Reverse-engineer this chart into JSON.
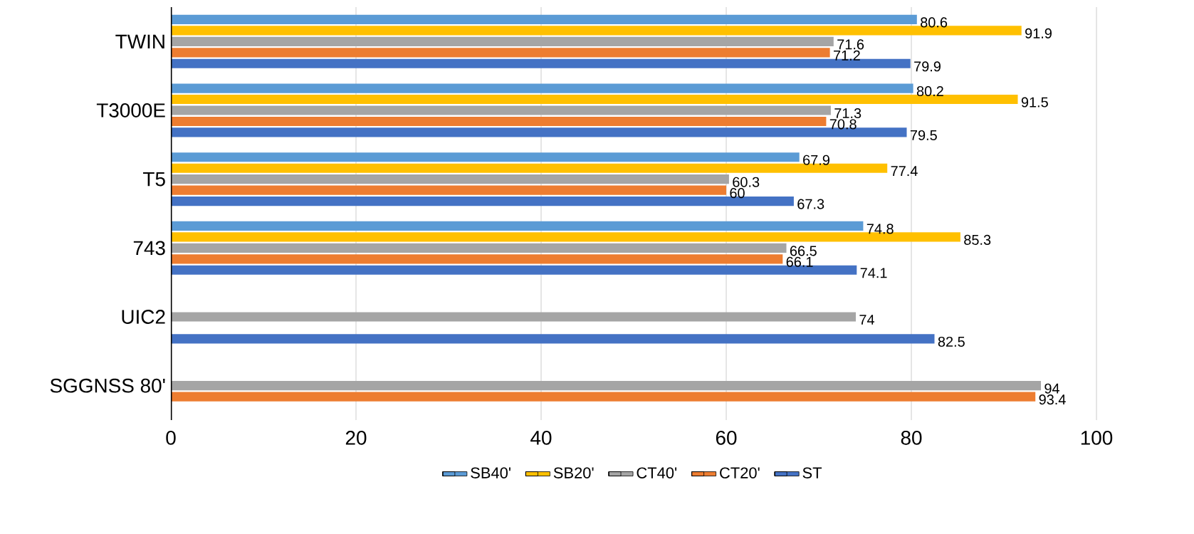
{
  "chart_data": {
    "type": "bar",
    "orientation": "horizontal",
    "categories": [
      "TWIN",
      "T3000E",
      "T5",
      "743",
      "UIC2",
      "SGGNSS 80'"
    ],
    "series": [
      {
        "name": "SB40'",
        "color": "#5b9bd5",
        "values": [
          80.6,
          80.2,
          67.9,
          74.8,
          null,
          null
        ]
      },
      {
        "name": "SB20'",
        "color": "#ffc000",
        "values": [
          91.9,
          91.5,
          77.4,
          85.3,
          null,
          null
        ]
      },
      {
        "name": "CT40'",
        "color": "#a5a5a5",
        "values": [
          71.6,
          71.3,
          60.3,
          66.5,
          74,
          94
        ]
      },
      {
        "name": "CT20'",
        "color": "#ed7d31",
        "values": [
          71.2,
          70.8,
          60,
          66.1,
          null,
          93.4
        ]
      },
      {
        "name": "ST",
        "color": "#4472c4",
        "values": [
          79.9,
          79.5,
          67.3,
          74.1,
          82.5,
          null
        ]
      }
    ],
    "xlim": [
      0,
      100
    ],
    "xticks": [
      0,
      20,
      40,
      60,
      80,
      100
    ],
    "grid": "x",
    "legend": "bottom",
    "data_labels": true
  }
}
